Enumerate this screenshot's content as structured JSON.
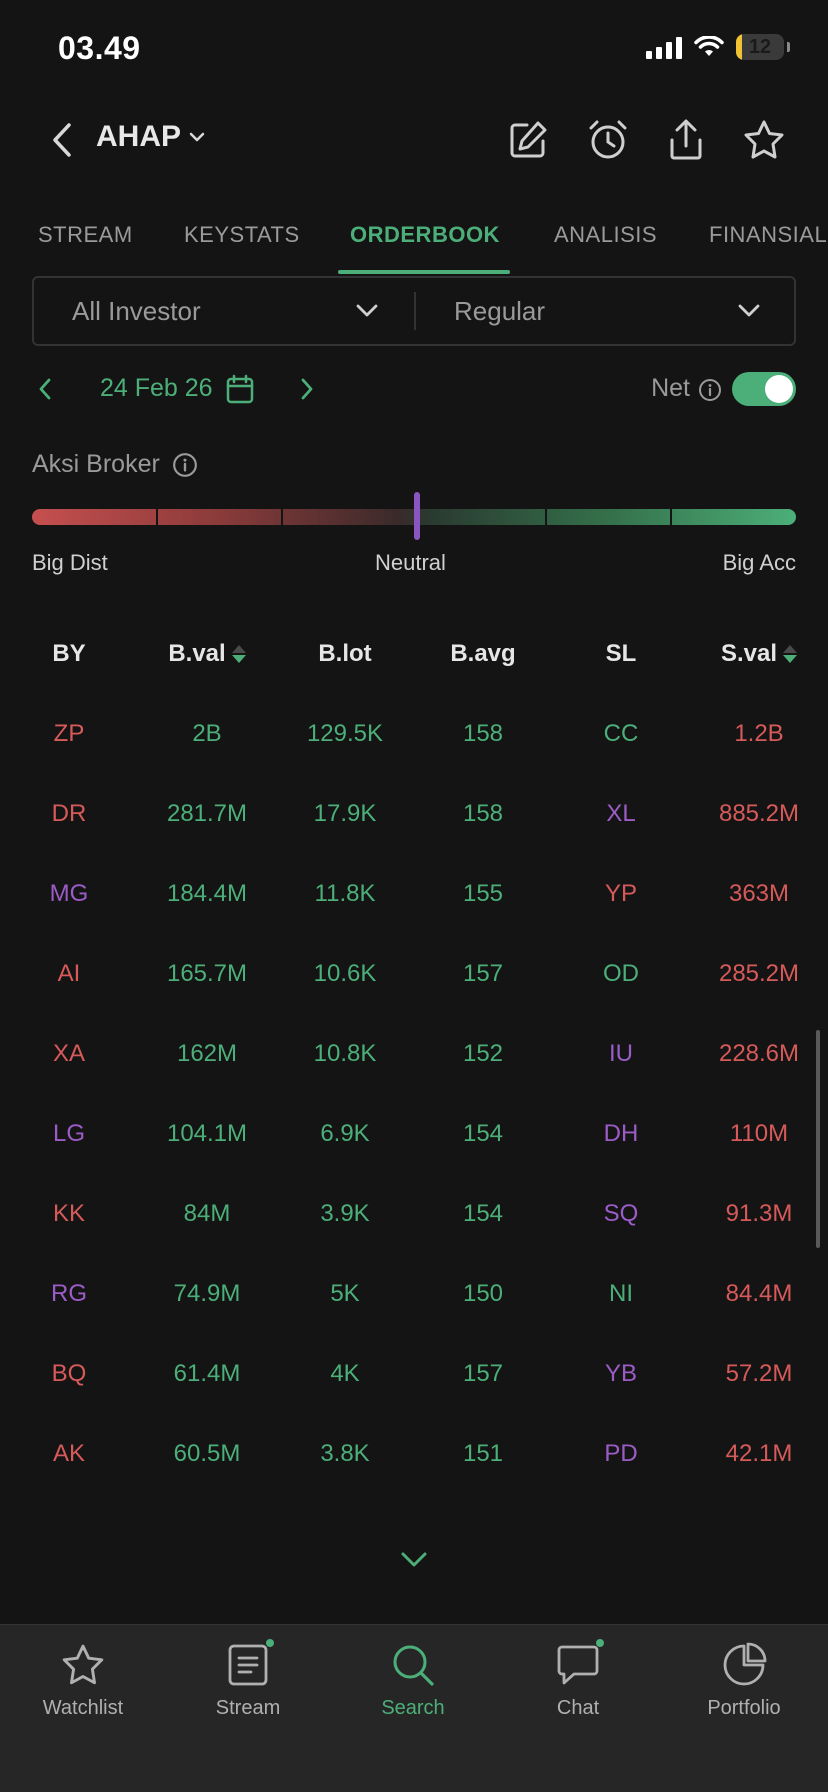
{
  "status_bar": {
    "time": "03.49",
    "battery": "12"
  },
  "header": {
    "ticker": "AHAP"
  },
  "tabs": [
    {
      "label": "STREAM",
      "active": false
    },
    {
      "label": "KEYSTATS",
      "active": false
    },
    {
      "label": "ORDERBOOK",
      "active": true
    },
    {
      "label": "ANALISIS",
      "active": false
    },
    {
      "label": "FINANSIAL",
      "active": false
    }
  ],
  "filters": {
    "investor": "All Investor",
    "market": "Regular"
  },
  "date_row": {
    "date": "24 Feb 26",
    "net_label": "Net",
    "net_enabled": true
  },
  "broker_gauge": {
    "title": "Aksi Broker",
    "left_label": "Big Dist",
    "center_label": "Neutral",
    "right_label": "Big Acc",
    "level": 0.5
  },
  "table": {
    "headers": [
      "BY",
      "B.val",
      "B.lot",
      "B.avg",
      "SL",
      "S.val"
    ],
    "rows": [
      {
        "by": "ZP",
        "by_color": "red",
        "bval": "2B",
        "blot": "129.5K",
        "bavg": "158",
        "sl": "CC",
        "sl_color": "green",
        "sval": "1.2B"
      },
      {
        "by": "DR",
        "by_color": "red",
        "bval": "281.7M",
        "blot": "17.9K",
        "bavg": "158",
        "sl": "XL",
        "sl_color": "purple",
        "sval": "885.2M"
      },
      {
        "by": "MG",
        "by_color": "purple",
        "bval": "184.4M",
        "blot": "11.8K",
        "bavg": "155",
        "sl": "YP",
        "sl_color": "red",
        "sval": "363M"
      },
      {
        "by": "AI",
        "by_color": "red",
        "bval": "165.7M",
        "blot": "10.6K",
        "bavg": "157",
        "sl": "OD",
        "sl_color": "green",
        "sval": "285.2M"
      },
      {
        "by": "XA",
        "by_color": "red",
        "bval": "162M",
        "blot": "10.8K",
        "bavg": "152",
        "sl": "IU",
        "sl_color": "purple",
        "sval": "228.6M"
      },
      {
        "by": "LG",
        "by_color": "purple",
        "bval": "104.1M",
        "blot": "6.9K",
        "bavg": "154",
        "sl": "DH",
        "sl_color": "purple",
        "sval": "110M"
      },
      {
        "by": "KK",
        "by_color": "red",
        "bval": "84M",
        "blot": "3.9K",
        "bavg": "154",
        "sl": "SQ",
        "sl_color": "purple",
        "sval": "91.3M"
      },
      {
        "by": "RG",
        "by_color": "purple",
        "bval": "74.9M",
        "blot": "5K",
        "bavg": "150",
        "sl": "NI",
        "sl_color": "green",
        "sval": "84.4M"
      },
      {
        "by": "BQ",
        "by_color": "red",
        "bval": "61.4M",
        "blot": "4K",
        "bavg": "157",
        "sl": "YB",
        "sl_color": "purple",
        "sval": "57.2M"
      },
      {
        "by": "AK",
        "by_color": "red",
        "bval": "60.5M",
        "blot": "3.8K",
        "bavg": "151",
        "sl": "PD",
        "sl_color": "purple",
        "sval": "42.1M"
      }
    ]
  },
  "bottom_nav": [
    {
      "label": "Watchlist",
      "icon": "star-icon",
      "active": false,
      "dot": false
    },
    {
      "label": "Stream",
      "icon": "stream-icon",
      "active": false,
      "dot": true
    },
    {
      "label": "Search",
      "icon": "search-icon",
      "active": true,
      "dot": false
    },
    {
      "label": "Chat",
      "icon": "chat-icon",
      "active": false,
      "dot": true
    },
    {
      "label": "Portfolio",
      "icon": "pie-chart-icon",
      "active": false,
      "dot": false
    }
  ],
  "colors": {
    "accent": "#4caf79",
    "red": "#d65a5a",
    "green": "#4caf79",
    "purple": "#9b5cc7",
    "background": "#141414"
  }
}
